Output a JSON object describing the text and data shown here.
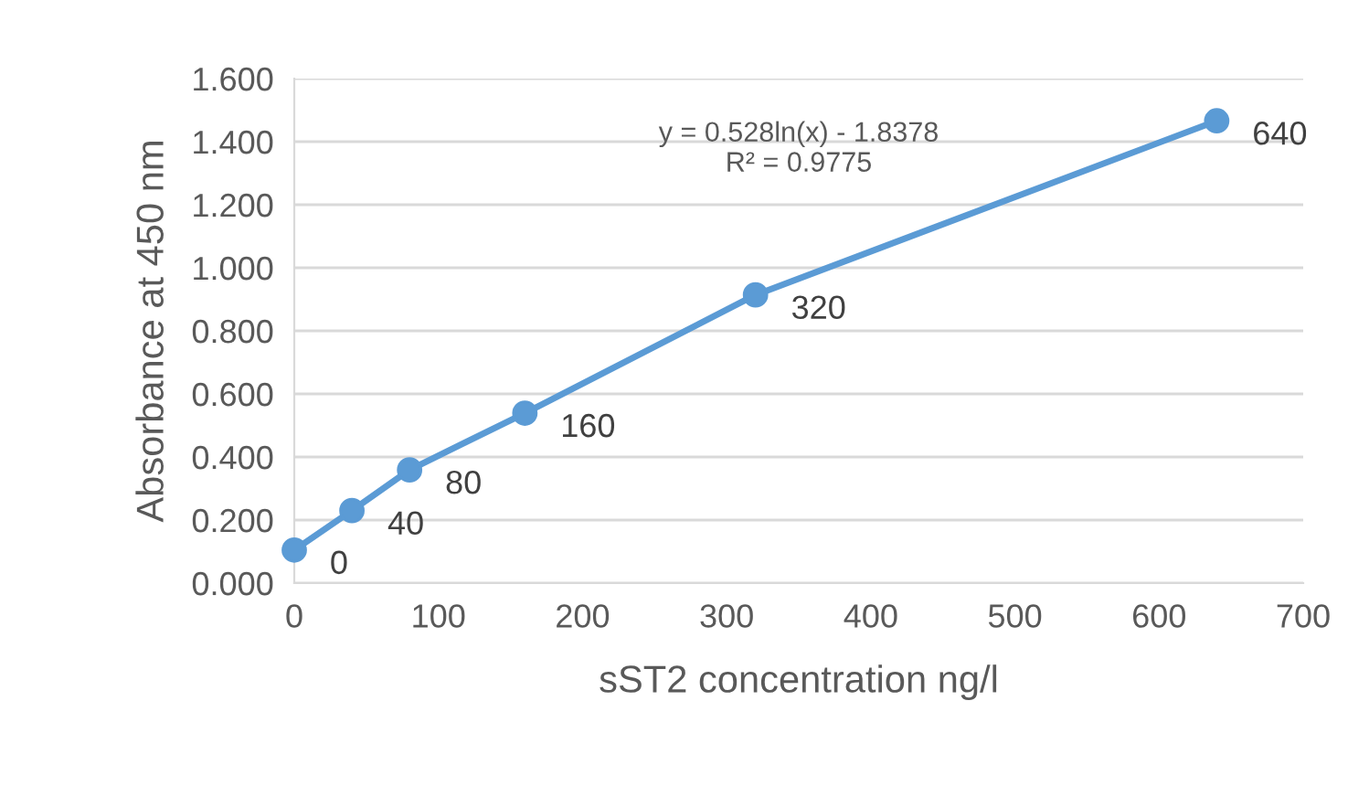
{
  "chart_data": {
    "type": "line",
    "xlabel": "sST2 concentration ng/l",
    "ylabel": "Absorbance at 450 nm",
    "x": [
      0,
      40,
      80,
      160,
      320,
      640
    ],
    "series": [
      {
        "color": "#5b9bd5",
        "values": [
          0.105,
          0.23,
          0.359,
          0.539,
          0.914,
          1.466
        ]
      }
    ],
    "marker": "circle",
    "line_style": "solid",
    "grid": "y",
    "xlim": [
      0,
      700
    ],
    "xticks": [
      0,
      100,
      200,
      300,
      400,
      500,
      600,
      700
    ],
    "ylim": [
      0,
      1.6
    ],
    "yticks": [
      {
        "value": 0,
        "label": "0.000"
      },
      {
        "value": 0.2,
        "label": "0.200"
      },
      {
        "value": 0.4,
        "label": "0.400"
      },
      {
        "value": 0.6,
        "label": "0.600"
      },
      {
        "value": 0.8,
        "label": "0.800"
      },
      {
        "value": 1.0,
        "label": "1.000"
      },
      {
        "value": 1.2,
        "label": "1.200"
      },
      {
        "value": 1.4,
        "label": "1.400"
      },
      {
        "value": 1.6,
        "label": "1.600"
      }
    ],
    "annotations": [
      {
        "text": "0",
        "x": 0,
        "y": 0.105
      },
      {
        "text": "40",
        "x": 40,
        "y": 0.23
      },
      {
        "text": "80",
        "x": 80,
        "y": 0.359
      },
      {
        "text": "160",
        "x": 160,
        "y": 0.539
      },
      {
        "text": "320",
        "x": 320,
        "y": 0.914
      },
      {
        "text": "640",
        "x": 640,
        "y": 1.466
      },
      "y = 0.528ln(x) - 1.8378\nR² = 0.9775"
    ]
  }
}
